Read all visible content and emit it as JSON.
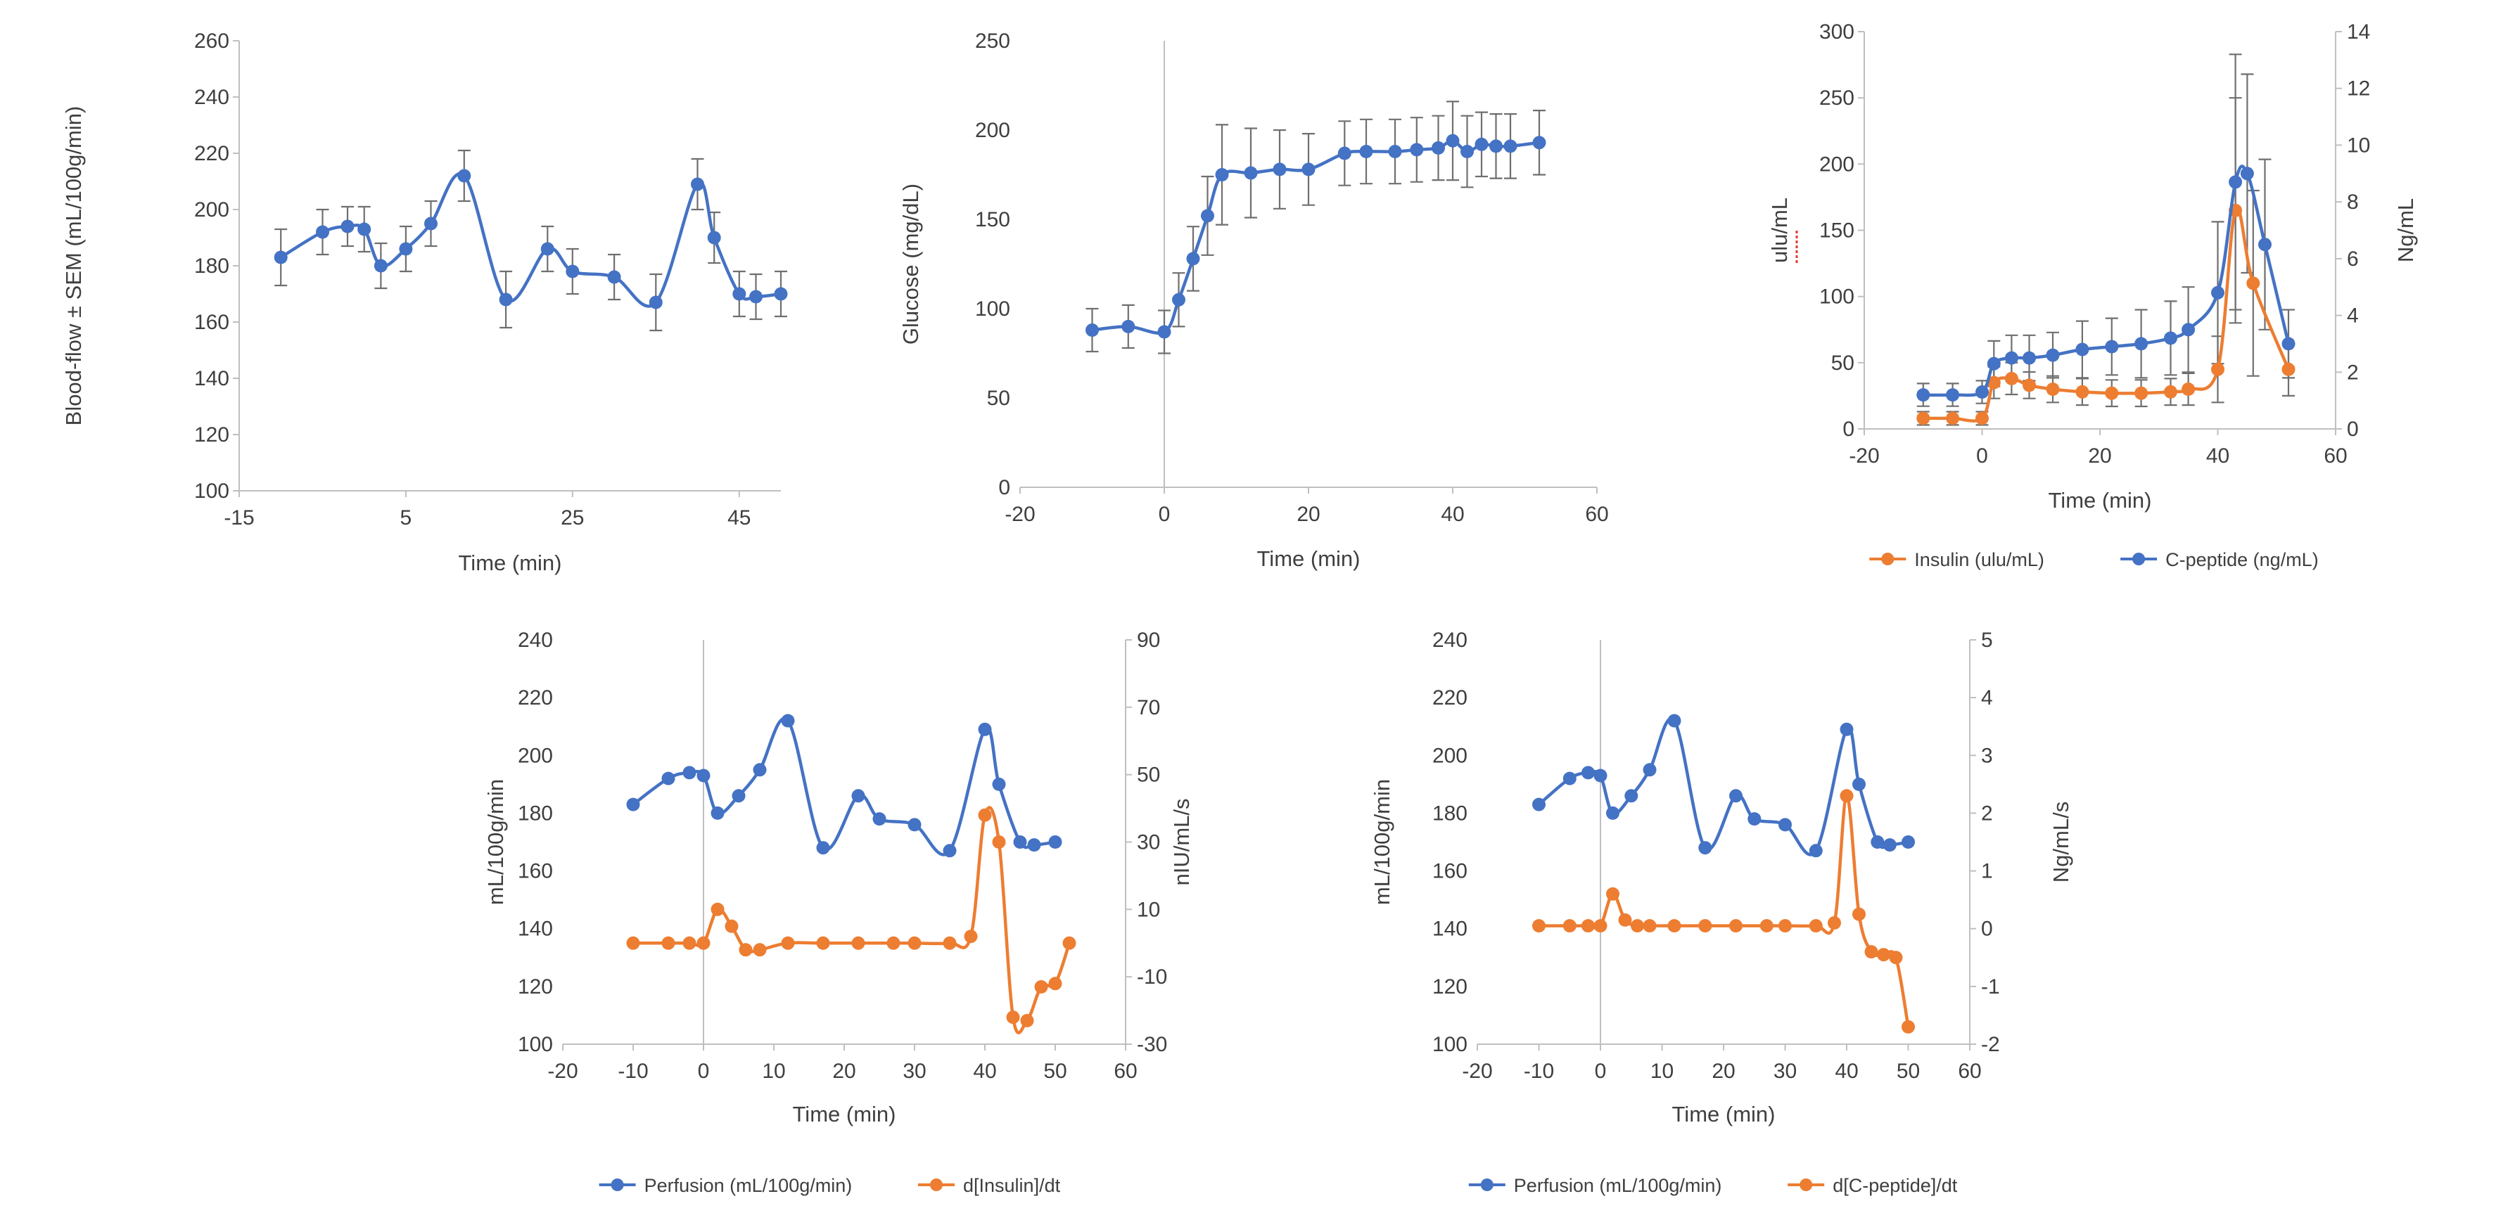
{
  "colors": {
    "blue": "#4472C4",
    "orange": "#ED7D31",
    "error_bar": "#6F6F6F",
    "axis_line": "#BFBFBF",
    "text": "#3F3F3F",
    "spellcheck_red": "#E03C31"
  },
  "chart_data": [
    {
      "id": "blood-flow",
      "type": "line",
      "xlabel": "Time (min)",
      "ylabel": "Blood-flow ± SEM (mL/100g/min)",
      "xlim": [
        -15,
        50
      ],
      "xticks": [
        -15,
        5,
        25,
        45
      ],
      "ylim": [
        100,
        260
      ],
      "yticks": [
        100,
        120,
        140,
        160,
        180,
        200,
        220,
        240,
        260
      ],
      "vline_x": -15,
      "series": [
        {
          "name": "Blood-flow ± SEM",
          "color": "blue",
          "axis": "left",
          "x": [
            -10,
            -5,
            -2,
            0,
            2,
            5,
            8,
            12,
            17,
            22,
            25,
            30,
            35,
            40,
            42,
            45,
            47,
            50
          ],
          "y": [
            183,
            192,
            194,
            193,
            180,
            186,
            195,
            212,
            168,
            186,
            178,
            176,
            167,
            209,
            190,
            170,
            169,
            170
          ],
          "err": [
            10,
            8,
            7,
            8,
            8,
            8,
            8,
            9,
            10,
            8,
            8,
            8,
            10,
            9,
            9,
            8,
            8,
            8
          ]
        }
      ]
    },
    {
      "id": "glucose",
      "type": "line",
      "xlabel": "Time (min)",
      "ylabel": "Glucose (mg/dL)",
      "xlim": [
        -20,
        60
      ],
      "xticks": [
        -20,
        0,
        20,
        40,
        60
      ],
      "ylim": [
        0,
        250
      ],
      "yticks": [
        0,
        50,
        100,
        150,
        200,
        250
      ],
      "vline_x": 0,
      "series": [
        {
          "name": "Glucose",
          "color": "blue",
          "axis": "left",
          "x": [
            -10,
            -5,
            0,
            2,
            4,
            6,
            8,
            12,
            16,
            20,
            25,
            28,
            32,
            35,
            38,
            40,
            42,
            44,
            46,
            48,
            52
          ],
          "y": [
            88,
            90,
            87,
            105,
            128,
            152,
            175,
            176,
            178,
            178,
            187,
            188,
            188,
            189,
            190,
            194,
            188,
            192,
            191,
            191,
            193
          ],
          "err": [
            12,
            12,
            12,
            15,
            18,
            22,
            28,
            25,
            22,
            20,
            18,
            18,
            18,
            18,
            18,
            22,
            20,
            18,
            18,
            18,
            18
          ]
        }
      ]
    },
    {
      "id": "insulin-cpeptide",
      "type": "line",
      "xlabel": "Time (min)",
      "ylabel": "ulu/mL",
      "ylabel_spellcheck": "ulu",
      "ylabel_right": "Ng/mL",
      "xlim": [
        -20,
        60
      ],
      "xticks": [
        -20,
        0,
        20,
        40,
        60
      ],
      "ylim": [
        0,
        300
      ],
      "yticks": [
        0,
        50,
        100,
        150,
        200,
        250,
        300
      ],
      "ylim_right": [
        0,
        14
      ],
      "yticks_right": [
        0,
        2,
        4,
        6,
        8,
        10,
        12,
        14
      ],
      "vline_x": -20,
      "right_axis_line": true,
      "series": [
        {
          "name": "Insulin (ulu/mL)",
          "color": "orange",
          "axis": "left",
          "x": [
            -10,
            -5,
            0,
            2,
            5,
            8,
            12,
            17,
            22,
            27,
            32,
            35,
            40,
            43,
            46,
            52
          ],
          "y": [
            8,
            8,
            8,
            35,
            38,
            33,
            30,
            28,
            27,
            27,
            28,
            30,
            45,
            165,
            110,
            45
          ],
          "err": [
            5,
            5,
            5,
            12,
            12,
            10,
            10,
            10,
            10,
            10,
            10,
            12,
            25,
            85,
            70,
            20
          ]
        },
        {
          "name": "C-peptide (ng/mL)",
          "color": "blue",
          "axis": "right",
          "x": [
            -10,
            -5,
            0,
            2,
            5,
            8,
            12,
            17,
            22,
            27,
            32,
            35,
            40,
            43,
            45,
            48,
            52
          ],
          "y": [
            1.2,
            1.2,
            1.3,
            2.3,
            2.5,
            2.5,
            2.6,
            2.8,
            2.9,
            3.0,
            3.2,
            3.5,
            4.8,
            8.7,
            9.0,
            6.5,
            3.0
          ],
          "err": [
            0.4,
            0.4,
            0.4,
            0.8,
            0.8,
            0.8,
            0.8,
            1.0,
            1.0,
            1.2,
            1.3,
            1.5,
            2.5,
            4.5,
            3.5,
            3.0,
            1.2
          ]
        }
      ],
      "legend": [
        {
          "label": "Insulin (ulu/mL)",
          "color": "orange"
        },
        {
          "label": "C-peptide (ng/mL)",
          "color": "blue"
        }
      ]
    },
    {
      "id": "perfusion-dinsulin",
      "type": "line",
      "xlabel": "Time (min)",
      "ylabel": "mL/100g/min",
      "ylabel_right": "nIU/mL/s",
      "xlim": [
        -20,
        60
      ],
      "xticks": [
        -20,
        -10,
        0,
        10,
        20,
        30,
        40,
        50,
        60
      ],
      "ylim": [
        100,
        240
      ],
      "yticks": [
        100,
        120,
        140,
        160,
        180,
        200,
        220,
        240
      ],
      "ylim_right": [
        -30,
        90
      ],
      "yticks_right": [
        -30,
        -10,
        10,
        30,
        50,
        70,
        90
      ],
      "vline_x": 0,
      "right_axis_line": true,
      "series": [
        {
          "name": "Perfusion (mL/100g/min)",
          "color": "blue",
          "axis": "left",
          "x": [
            -10,
            -5,
            -2,
            0,
            2,
            5,
            8,
            12,
            17,
            22,
            25,
            30,
            35,
            40,
            42,
            45,
            47,
            50
          ],
          "y": [
            183,
            192,
            194,
            193,
            180,
            186,
            195,
            212,
            168,
            186,
            178,
            176,
            167,
            209,
            190,
            170,
            169,
            170
          ]
        },
        {
          "name": "d[Insulin]/dt",
          "color": "orange",
          "axis": "right",
          "x": [
            -10,
            -5,
            -2,
            0,
            2,
            4,
            6,
            8,
            12,
            17,
            22,
            27,
            30,
            35,
            38,
            40,
            42,
            44,
            46,
            48,
            50,
            52
          ],
          "y": [
            0,
            0,
            0,
            0,
            10,
            5,
            -2,
            -2,
            0,
            0,
            0,
            0,
            0,
            0,
            2,
            38,
            30,
            -22,
            -23,
            -13,
            -12,
            0
          ]
        }
      ],
      "legend": [
        {
          "label": "Perfusion (mL/100g/min)",
          "color": "blue"
        },
        {
          "label": "d[Insulin]/dt",
          "color": "orange"
        }
      ]
    },
    {
      "id": "perfusion-dcpeptide",
      "type": "line",
      "xlabel": "Time (min)",
      "ylabel": "mL/100g/min",
      "ylabel_right": "Ng/mL/s",
      "xlim": [
        -20,
        60
      ],
      "xticks": [
        -20,
        -10,
        0,
        10,
        20,
        30,
        40,
        50,
        60
      ],
      "ylim": [
        100,
        240
      ],
      "yticks": [
        100,
        120,
        140,
        160,
        180,
        200,
        220,
        240
      ],
      "ylim_right": [
        -2,
        5
      ],
      "yticks_right": [
        -2,
        -1,
        0,
        1,
        2,
        3,
        4,
        5
      ],
      "vline_x": 0,
      "right_axis_line": true,
      "series": [
        {
          "name": "Perfusion (mL/100g/min)",
          "color": "blue",
          "axis": "left",
          "x": [
            -10,
            -5,
            -2,
            0,
            2,
            5,
            8,
            12,
            17,
            22,
            25,
            30,
            35,
            40,
            42,
            45,
            47,
            50
          ],
          "y": [
            183,
            192,
            194,
            193,
            180,
            186,
            195,
            212,
            168,
            186,
            178,
            176,
            167,
            209,
            190,
            170,
            169,
            170
          ]
        },
        {
          "name": "d[C-peptide]/dt",
          "color": "orange",
          "axis": "right",
          "x": [
            -10,
            -5,
            -2,
            0,
            2,
            4,
            6,
            8,
            12,
            17,
            22,
            27,
            30,
            35,
            38,
            40,
            42,
            44,
            46,
            48,
            50
          ],
          "y": [
            0.05,
            0.05,
            0.05,
            0.05,
            0.6,
            0.15,
            0.05,
            0.05,
            0.05,
            0.05,
            0.05,
            0.05,
            0.05,
            0.05,
            0.1,
            2.3,
            0.25,
            -0.4,
            -0.45,
            -0.5,
            -1.7
          ]
        }
      ],
      "legend": [
        {
          "label": "Perfusion (mL/100g/min)",
          "color": "blue"
        },
        {
          "label": "d[C-peptide]/dt",
          "color": "orange"
        }
      ]
    }
  ]
}
